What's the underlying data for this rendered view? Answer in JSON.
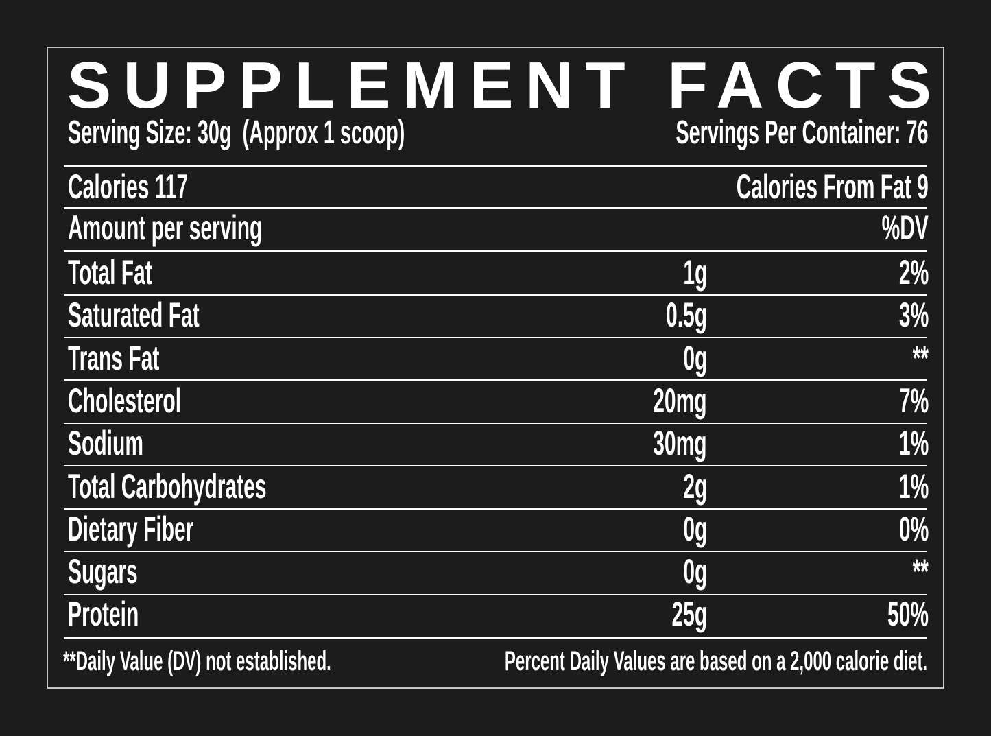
{
  "title": "SUPPLEMENT FACTS",
  "serving_size": "Serving Size: 30g  (Approx 1 scoop)",
  "servings_per_container": "Servings Per Container: 76",
  "calories": "Calories 117",
  "calories_from_fat": "Calories From Fat 9",
  "header": {
    "label": "Amount per serving",
    "dv": "%DV"
  },
  "rows": [
    [
      "Total Fat",
      "1g",
      "2%"
    ],
    [
      "Saturated Fat",
      "0.5g",
      "3%"
    ],
    [
      "Trans Fat",
      "0g",
      "**"
    ],
    [
      "Cholesterol",
      "20mg",
      "7%"
    ],
    [
      "Sodium",
      "30mg",
      "1%"
    ],
    [
      "Total Carbohydrates",
      "2g",
      "1%"
    ],
    [
      "Dietary Fiber",
      "0g",
      "0%"
    ],
    [
      "Sugars",
      "0g",
      "**"
    ],
    [
      "Protein",
      "25g",
      "50%"
    ]
  ],
  "footnotes": {
    "left": "**Daily Value (DV) not established.",
    "right": "Percent Daily Values are based on a 2,000 calorie diet."
  }
}
